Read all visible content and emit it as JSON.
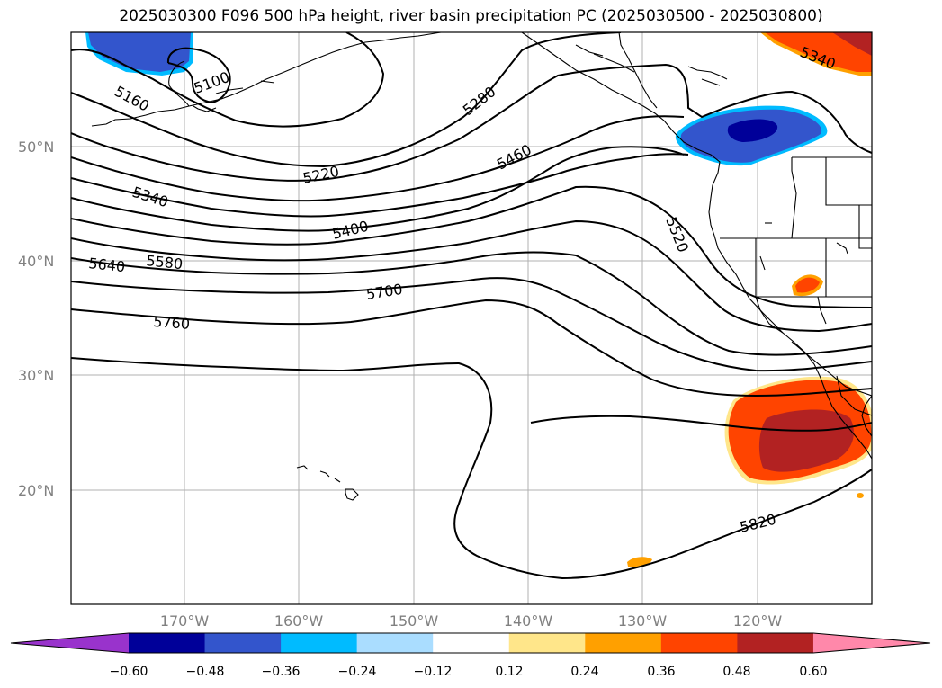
{
  "title": "2025030300 F096 500 hPa height, river basin precipitation PC (2025030500 - 2025030800)",
  "latitude_labels": [
    "50°N",
    "40°N",
    "30°N",
    "20°N"
  ],
  "longitude_labels": [
    "170°W",
    "160°W",
    "150°W",
    "140°W",
    "130°W",
    "120°W"
  ],
  "contour_labels": [
    "5100",
    "5160",
    "5220",
    "5280",
    "5340",
    "5340",
    "5400",
    "5460",
    "5520",
    "5580",
    "5640",
    "5700",
    "5760",
    "5820"
  ],
  "colorbar": {
    "tick_labels": [
      "−0.60",
      "−0.48",
      "−0.36",
      "−0.24",
      "−0.12",
      "0.12",
      "0.24",
      "0.36",
      "0.48",
      "0.60"
    ],
    "colors": [
      "#9933cc",
      "#000099",
      "#3355cc",
      "#00bbff",
      "#aaddff",
      "#ffffff",
      "#ffe68a",
      "#ffa000",
      "#ff4400",
      "#b22222",
      "#ff88aa"
    ]
  },
  "shading_colors": {
    "blue_light": "#3355cc",
    "blue_dark": "#000099",
    "cyan_edge": "#00bbff",
    "red_light": "#ff4400",
    "red_dark": "#b22222",
    "orange_edge": "#ffa000",
    "yellow_edge": "#ffe68a"
  }
}
